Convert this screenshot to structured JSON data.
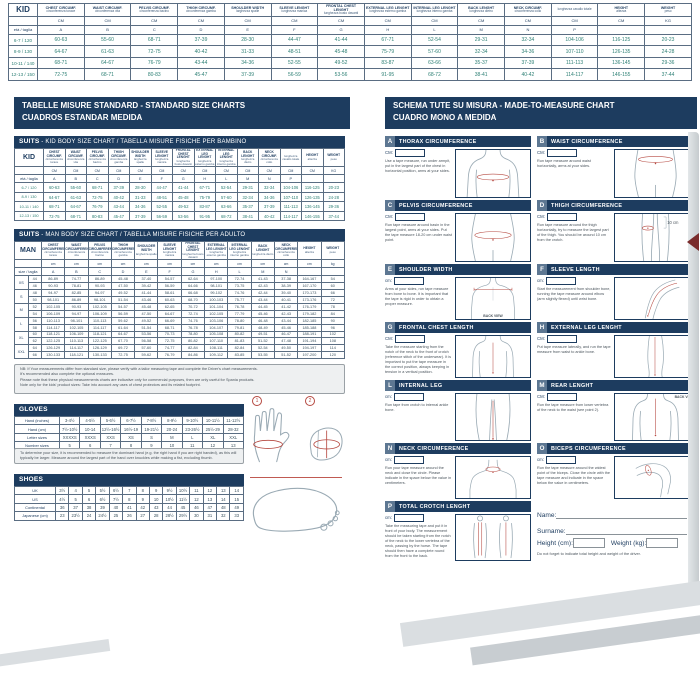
{
  "left_header": {
    "line1": "TABELLE MISURE STANDARD - STANDARD SIZE CHARTS",
    "line2": "CUADROS ESTANDAR MEDIDA"
  },
  "right_header": {
    "line1": "SCHEMA TUTE SU MISURA - MADE-TO-MEASURE CHART",
    "line2": "CUADRO MONO A MEDIDA"
  },
  "kid_chart": {
    "title_bold": "SUITS",
    "title_rest": " - KID BODY SIZE CHART / TABELLA MISURE FISICHE PER BAMBINO",
    "row_label": "KID",
    "columns": [
      {
        "en": "CHEST CIRCUMF.",
        "it": "circonferenza torace"
      },
      {
        "en": "WAIST CIRCUMF.",
        "it": "circonferenza vita"
      },
      {
        "en": "PELVIS CIRCUMF.",
        "it": "circonferenza bacino"
      },
      {
        "en": "THIGH CIRCUMF.",
        "it": "circonferenza gamba"
      },
      {
        "en": "SHOULDER WIDTH",
        "it": "larghezza spalle"
      },
      {
        "en": "SLEEVE LENGHT",
        "it": "lunghezza manica"
      },
      {
        "en": "FRONTAL CHEST LENGHT",
        "it": "lunghezza busto davanti"
      },
      {
        "en": "EXTERNAL LEG LENGHT",
        "it": "lunghezza esterno gamba"
      },
      {
        "en": "INTERNAL LEG LENGHT",
        "it": "lunghezza interno gamba"
      },
      {
        "en": "BACK LENGHT",
        "it": "lunghezza dietro"
      },
      {
        "en": "NECK CIRCUMF.",
        "it": "circonferenza collo"
      },
      {
        "en": "",
        "it": "lunghezza cavallo totale"
      },
      {
        "en": "HEIGHT",
        "it": "altezza"
      },
      {
        "en": "WEIGHT",
        "it": "peso"
      }
    ],
    "units": [
      "CM",
      "CM",
      "CM",
      "CM",
      "CM",
      "CM",
      "CM",
      "CM",
      "CM",
      "CM",
      "CM",
      "CM",
      "CM",
      "KG"
    ],
    "letters_label": "età / taglia",
    "letters": [
      "A",
      "B",
      "C",
      "D",
      "E",
      "F",
      "G",
      "H",
      "L",
      "M",
      "N",
      "P",
      "",
      ""
    ],
    "rows": [
      {
        "label": "6-7 / 120",
        "values": [
          "60-63",
          "55-60",
          "68-71",
          "37-39",
          "28-30",
          "44-47",
          "41-44",
          "67-71",
          "52-54",
          "29-31",
          "32-34",
          "104-106",
          "116-125",
          "20-23"
        ]
      },
      {
        "label": "8-9 / 130",
        "values": [
          "64-67",
          "61-63",
          "72-75",
          "40-42",
          "31-33",
          "48-51",
          "45-48",
          "75-79",
          "57-60",
          "32-34",
          "34-36",
          "107-110",
          "126-135",
          "24-28"
        ]
      },
      {
        "label": "10-11 / 140",
        "values": [
          "68-71",
          "64-67",
          "76-79",
          "43-44",
          "34-36",
          "52-55",
          "49-52",
          "83-87",
          "63-66",
          "35-37",
          "37-39",
          "111-113",
          "136-145",
          "29-36"
        ]
      },
      {
        "label": "12-13 / 150",
        "values": [
          "72-75",
          "68-71",
          "80-83",
          "45-47",
          "37-39",
          "56-59",
          "53-56",
          "91-95",
          "68-72",
          "38-41",
          "40-42",
          "114-117",
          "146-155",
          "37-44"
        ]
      }
    ]
  },
  "man_chart": {
    "title_bold": "SUITS",
    "title_rest": " - MAN BODY SIZE CHART / TABELLA MISURE FISICHE PER ADULTO",
    "row_label": "MAN",
    "columns": [
      {
        "en": "CHEST CIRCUMFERENCE",
        "it": "circonferenza torace"
      },
      {
        "en": "WAIST CIRCUMFERENCE",
        "it": "circonferenza vita"
      },
      {
        "en": "PELVIS CIRCUMFERENCE",
        "it": "circonferenza bacino"
      },
      {
        "en": "THIGH CIRCUMFERENCE",
        "it": "circonferenza gamba"
      },
      {
        "en": "SHOULDER WIDTH",
        "it": "larghezza spalle"
      },
      {
        "en": "SLEEVE LENGHT",
        "it": "lunghezza manica"
      },
      {
        "en": "FRONTAL CHEST LENGHT",
        "it": "lunghezza busto davanti"
      },
      {
        "en": "EXTERNAL LEG LENGHT",
        "it": "lunghezza esterno gamba"
      },
      {
        "en": "INTERNAL LEG LENGHT",
        "it": "lunghezza interno gamba"
      },
      {
        "en": "BACK LENGHT",
        "it": "lunghezza dietro"
      },
      {
        "en": "NECK CIRCUMFERENCE",
        "it": "circonferenza collo"
      },
      {
        "en": "HEIGHT",
        "it": "altezza"
      },
      {
        "en": "WEIGHT",
        "it": "peso"
      }
    ],
    "units": [
      "cm",
      "cm",
      "cm",
      "cm",
      "cm",
      "cm",
      "cm",
      "cm",
      "cm",
      "cm",
      "cm",
      "cm",
      "kg"
    ],
    "letters_label": "size / taglia",
    "letters": [
      "A",
      "B",
      "C",
      "D",
      "E",
      "F",
      "G",
      "H",
      "L",
      "M",
      "N",
      "",
      ""
    ],
    "rows": [
      {
        "group": "XS",
        "label": "44",
        "values": [
          "86-89",
          "74-77",
          "86-89",
          "45-48",
          "37-40",
          "54-57",
          "62-64",
          "97-100",
          "72-74",
          "41-43",
          "37-38",
          "164-167",
          "54"
        ]
      },
      {
        "group": "",
        "label": "46",
        "values": [
          "90-93",
          "78-81",
          "90-93",
          "47-50",
          "39-42",
          "56-59",
          "64-66",
          "98-101",
          "73-75",
          "42-43",
          "38-39",
          "167-170",
          "60"
        ]
      },
      {
        "group": "S",
        "label": "48",
        "values": [
          "94-97",
          "82-85",
          "94-97",
          "49-52",
          "41-44",
          "58-61",
          "66-68",
          "99-102",
          "74-76",
          "42-44",
          "39-40",
          "170-173",
          "66"
        ]
      },
      {
        "group": "",
        "label": "50",
        "values": [
          "98-101",
          "86-89",
          "98-101",
          "51-54",
          "43-46",
          "60-63",
          "68-70",
          "100-103",
          "75-77",
          "43-44",
          "40-41",
          "173-176",
          "72"
        ]
      },
      {
        "group": "M",
        "label": "52",
        "values": [
          "102-105",
          "90-93",
          "102-105",
          "54-57",
          "45-48",
          "62-65",
          "70-72",
          "101-104",
          "76-78",
          "44-45",
          "41-42",
          "176-179",
          "78"
        ]
      },
      {
        "group": "",
        "label": "54",
        "values": [
          "106-109",
          "94-97",
          "106-109",
          "56-59",
          "47-50",
          "64-67",
          "72-74",
          "102-105",
          "77-79",
          "45-46",
          "42-43",
          "179-182",
          "84"
        ]
      },
      {
        "group": "L",
        "label": "56",
        "values": [
          "110-113",
          "98-101",
          "110-113",
          "59-62",
          "49-52",
          "66-69",
          "74-76",
          "103-106",
          "78-80",
          "46-48",
          "43-44",
          "182-185",
          "90"
        ]
      },
      {
        "group": "",
        "label": "58",
        "values": [
          "114-117",
          "102-105",
          "114-117",
          "61-64",
          "51-54",
          "68-71",
          "76-78",
          "104-107",
          "79-81",
          "48-49",
          "45-46",
          "185-188",
          "96"
        ]
      },
      {
        "group": "XL",
        "label": "60",
        "values": [
          "118-121",
          "106-109",
          "118-121",
          "64-67",
          "53-56",
          "70-73",
          "78-80",
          "105-108",
          "80-82",
          "49-51",
          "46-47",
          "188-191",
          "102"
        ]
      },
      {
        "group": "",
        "label": "62",
        "values": [
          "122-125",
          "110-113",
          "122-125",
          "67-70",
          "56-58",
          "72-75",
          "80-82",
          "107-110",
          "81-83",
          "51-52",
          "47-48",
          "191-194",
          "108"
        ]
      },
      {
        "group": "XXL",
        "label": "64",
        "values": [
          "126-129",
          "114-117",
          "126-129",
          "69-72",
          "57-60",
          "74-77",
          "82-84",
          "108-111",
          "82-84",
          "52-54",
          "49-50",
          "194-197",
          "114"
        ]
      },
      {
        "group": "",
        "label": "66",
        "values": [
          "130-133",
          "118-121",
          "130-133",
          "72-75",
          "59-62",
          "76-79",
          "84-86",
          "109-112",
          "83-85",
          "53-55",
          "51-52",
          "197-200",
          "120"
        ]
      }
    ]
  },
  "standard_note_lines": [
    "NB: If Your measurements differ from standard size, please verify with a tailor measuring tape and complete the Driver's chart measurements.",
    "It's recommended also complete the optional measures.",
    "Please note that these physical measurements charts are indicative only for commercial purposes, then are only useful for Spania products.",
    "Note only for the kids' product sizes: Take into account any uses of chest protectors and its related footprint."
  ],
  "gloves": {
    "title": "GLOVES",
    "rows": [
      {
        "label": "Hand (inches)",
        "values": [
          "3-4½",
          "4-5½",
          "5-6½",
          "6-7½",
          "7-8½",
          "8-9½",
          "9-10½",
          "10-11½",
          "11-12½"
        ]
      },
      {
        "label": "Hand (cm)",
        "values": [
          "7½-10½",
          "10-14",
          "12½-16½",
          "16½-19",
          "19-21½",
          "20-24",
          "23-26½",
          "25½-29",
          "28-32"
        ]
      },
      {
        "label": "Letter sizes",
        "values": [
          "XXXXS",
          "XXXS",
          "XXS",
          "XS",
          "S",
          "M",
          "L",
          "XL",
          "XXL"
        ]
      },
      {
        "label": "Number sizes",
        "values": [
          "5",
          "6",
          "7",
          "8",
          "9",
          "10",
          "11",
          "12",
          "13"
        ]
      }
    ],
    "note": "To determine your size, it is recommended to measure the dominant hand (e.g. the right hand if you are right handed), as this will typically be larger. Measure around the largest part of the hand over knuckles while making a fist, excluding thumb.",
    "markers": [
      "1",
      "2"
    ]
  },
  "shoes": {
    "title": "SHOES",
    "rows": [
      {
        "label": "UK",
        "values": [
          "3½",
          "4",
          "5",
          "5½",
          "6½",
          "7",
          "8",
          "9",
          "9½",
          "10½",
          "11",
          "12",
          "13",
          "14"
        ]
      },
      {
        "label": "US",
        "values": [
          "4½",
          "5",
          "6",
          "6½",
          "7½",
          "8",
          "9",
          "10",
          "10½",
          "11½",
          "12",
          "13",
          "14",
          "15"
        ]
      },
      {
        "label": "Continental",
        "values": [
          "36",
          "37",
          "38",
          "39",
          "40",
          "41",
          "42",
          "43",
          "44",
          "45",
          "46",
          "47",
          "48",
          "49"
        ]
      },
      {
        "label": "Japanese (cm)",
        "values": [
          "23",
          "23½",
          "24",
          "24½",
          "25",
          "26",
          "27",
          "28",
          "28½",
          "29½",
          "30",
          "31",
          "32",
          "33"
        ]
      }
    ]
  },
  "measure_sections": [
    {
      "letter": "A",
      "title": "THORAX CIRCUMFERENCE",
      "cm_label": "CM:",
      "fig": "thorax",
      "text": "Use a tape measure, run under armpit, put in the largest part of the chest in horizontal position, arms at your sides."
    },
    {
      "letter": "B",
      "title": "WAIST CIRCUMFERENCE",
      "cm_label": "CM:",
      "fig": "waist",
      "text": "Run tape measure around waist horizontally, arms at your sides."
    },
    {
      "letter": "C",
      "title": "PELVIS CIRCUMFERENCE",
      "cm_label": "CM:",
      "fig": "pelvis",
      "text": "Run tape measure around basin in the largest point, arms at your sides. Put the tape measure 18-20 cm under waist point."
    },
    {
      "letter": "D",
      "title": "THIGH CIRCUMFERENCE",
      "cm_label": "CM:",
      "fig": "thigh",
      "text": "Run tape measure around the thigh horizontally, try to measure the largest part of the thigh. You should be around 10 cm from the crotch."
    },
    {
      "letter": "E",
      "title": "SHOULDER WIDTH",
      "cm_label": "cm:",
      "fig": "shoulder",
      "text": "Arms at your sides, run tape measure from bone to bone. It is important that the tape is rigid in order to obtain a proper measure."
    },
    {
      "letter": "F",
      "title": "SLEEVE LENGTH",
      "cm_label": "cm:",
      "fig": "sleeve",
      "text": "Start the measurement from shoulder bone, running the tape measure around elbow (arm slightly flexed) until wrist bone."
    },
    {
      "letter": "G",
      "title": "FRONTAL CHEST LENGTH",
      "cm_label": "CM:",
      "fig": "frontalchest",
      "text": "Take the measure starting from the notch of the neck to the front of crotch (reference stitch of the underwear). It is important to put the tape measure in the correct position, always keeping in tension in a vertical position."
    },
    {
      "letter": "H",
      "title": "EXTERNAL LEG LENGHT",
      "cm_label": "CM:",
      "fig": "externalleg",
      "text": "Put tape measure laterally, and run the tape measure from waist to ankle bone."
    },
    {
      "letter": "L",
      "title": "INTERNAL LEG",
      "cm_label": "cm:",
      "fig": "internalleg",
      "text": "Run tape from crotch to internal ankle bone."
    },
    {
      "letter": "M",
      "title": "REAR LENGHT",
      "cm_label": "CM:",
      "fig": "rear",
      "text": "Run the tape measure from lower vertebra of the neck to the waist (see point 2)."
    },
    {
      "letter": "N",
      "title": "NECK CIRCUMFERENCE",
      "cm_label": "cm:",
      "fig": "neck",
      "text": "Run your tape measure around the neck and close the circle. Please indicate in the space below the value in centimeters."
    },
    {
      "letter": "O",
      "title": "BICEPS CIRCUMFERENCE",
      "cm_label": "cm:",
      "fig": "biceps",
      "text": "Run the tape measure around the widest point of the biceps. Close the circle with the tape measure and indicate in the space below the value in centimeters."
    },
    {
      "letter": "P",
      "title": "TOTAL CROTCH LENGHT",
      "cm_label": "cm:",
      "fig": "crotch",
      "text": "Take the measuring tape and put it in front of your body. The measurement should be taken starting from the notch of the neck to the lower vertebra of the neck, passing by the horse. The tape should then have a complete round from the front to the back."
    }
  ],
  "figure_labels": {
    "back_view": "BACK VIEW",
    "ten_cm": "10 cm"
  },
  "form": {
    "name_label": "Name:",
    "surname_label": "Surname:",
    "height_label": "Height (cm):",
    "weight_label": "Weight (kg):",
    "note": "Do not forget to indicate total height and weight of the driver."
  },
  "colors": {
    "navy": "#1d3c5f",
    "chip": "#5d7792",
    "kid_values": "#2f8176",
    "man_values": "#3c5360",
    "red": "#b64a42"
  }
}
